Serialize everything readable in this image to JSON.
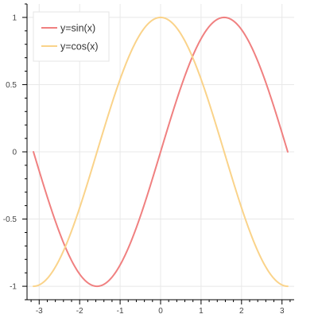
{
  "chart_data": {
    "type": "line",
    "xlim": [
      -3.3,
      3.3
    ],
    "ylim": [
      -1.1,
      1.1
    ],
    "x_ticks": [
      -3,
      -2,
      -1,
      0,
      1,
      2,
      3
    ],
    "x_tick_labels": [
      "-3",
      "-2",
      "-1",
      "0",
      "1",
      "2",
      "3"
    ],
    "y_ticks": [
      -1,
      -0.5,
      0,
      0.5,
      1
    ],
    "y_tick_labels": [
      "-1",
      "-0.5",
      "0",
      "0.5",
      "1"
    ],
    "grid": true,
    "legend": {
      "placement": "top-left",
      "entries": [
        "y=sin(x)",
        "y=cos(x)"
      ]
    },
    "series": [
      {
        "name": "y=sin(x)",
        "color": "#f08080",
        "x": [
          -3.1416,
          -2.8274,
          -2.5133,
          -2.1991,
          -1.885,
          -1.5708,
          -1.2566,
          -0.9425,
          -0.6283,
          -0.3142,
          0,
          0.3142,
          0.6283,
          0.9425,
          1.2566,
          1.5708,
          1.885,
          2.1991,
          2.5133,
          2.8274,
          3.1416
        ],
        "y": [
          0,
          -0.309,
          -0.5878,
          -0.809,
          -0.9511,
          -1,
          -0.9511,
          -0.809,
          -0.5878,
          -0.309,
          0,
          0.309,
          0.5878,
          0.809,
          0.9511,
          1,
          0.9511,
          0.809,
          0.5878,
          0.309,
          0
        ]
      },
      {
        "name": "y=cos(x)",
        "color": "#fad38a",
        "x": [
          -3.1416,
          -2.8274,
          -2.5133,
          -2.1991,
          -1.885,
          -1.5708,
          -1.2566,
          -0.9425,
          -0.6283,
          -0.3142,
          0,
          0.3142,
          0.6283,
          0.9425,
          1.2566,
          1.5708,
          1.885,
          2.1991,
          2.5133,
          2.8274,
          3.1416
        ],
        "y": [
          -1,
          -0.9511,
          -0.809,
          -0.5878,
          -0.309,
          0,
          0.309,
          0.5878,
          0.809,
          0.9511,
          1,
          0.9511,
          0.809,
          0.5878,
          0.309,
          0,
          -0.309,
          -0.5878,
          -0.809,
          -0.9511,
          -1
        ]
      }
    ]
  }
}
